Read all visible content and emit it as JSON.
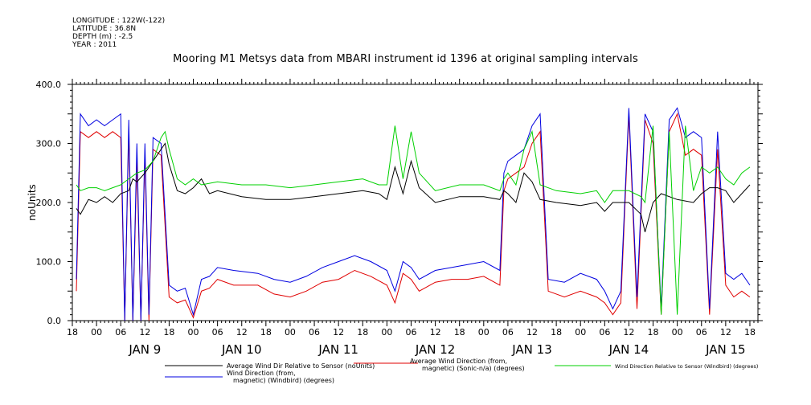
{
  "header": {
    "longitude": "LONGITUDE : 122W(-122)",
    "latitude": "LATITUDE : 36.8N",
    "depth": "DEPTH (m) : -2.5",
    "year": "YEAR : 2011"
  },
  "chart_data": {
    "type": "line",
    "title": "Mooring M1 Metsys data from MBARI instrument id 1396 at original sampling intervals",
    "ylabel": "noUnits",
    "xlabel": "",
    "ylim": [
      0,
      400
    ],
    "yticks": [
      0,
      100,
      200,
      300,
      400
    ],
    "xlim": [
      -6,
      164
    ],
    "x_unit": "hours since JAN 9 00:00",
    "hour_tick_labels": [
      "00",
      "06",
      "12",
      "18"
    ],
    "days": [
      "JAN 9",
      "JAN 10",
      "JAN 11",
      "JAN 12",
      "JAN 13",
      "JAN 14",
      "JAN 15"
    ],
    "grid": false,
    "series": [
      {
        "name": "Average Wind Dir Relative to Sensor (noUnits)",
        "color": "#000000",
        "points": [
          [
            -5,
            190
          ],
          [
            -4,
            180
          ],
          [
            -2,
            205
          ],
          [
            0,
            200
          ],
          [
            2,
            210
          ],
          [
            4,
            200
          ],
          [
            6,
            215
          ],
          [
            8,
            220
          ],
          [
            9,
            240
          ],
          [
            10,
            235
          ],
          [
            12,
            250
          ],
          [
            14,
            270
          ],
          [
            16,
            290
          ],
          [
            17,
            300
          ],
          [
            18,
            265
          ],
          [
            20,
            220
          ],
          [
            22,
            215
          ],
          [
            24,
            225
          ],
          [
            26,
            240
          ],
          [
            28,
            215
          ],
          [
            30,
            220
          ],
          [
            36,
            210
          ],
          [
            42,
            205
          ],
          [
            48,
            205
          ],
          [
            54,
            210
          ],
          [
            60,
            215
          ],
          [
            66,
            220
          ],
          [
            70,
            215
          ],
          [
            72,
            205
          ],
          [
            74,
            260
          ],
          [
            76,
            215
          ],
          [
            78,
            270
          ],
          [
            80,
            225
          ],
          [
            84,
            200
          ],
          [
            90,
            210
          ],
          [
            96,
            210
          ],
          [
            100,
            205
          ],
          [
            101,
            220
          ],
          [
            102,
            215
          ],
          [
            104,
            200
          ],
          [
            106,
            250
          ],
          [
            108,
            235
          ],
          [
            110,
            205
          ],
          [
            114,
            200
          ],
          [
            120,
            195
          ],
          [
            124,
            200
          ],
          [
            126,
            185
          ],
          [
            128,
            200
          ],
          [
            132,
            200
          ],
          [
            135,
            180
          ],
          [
            136,
            150
          ],
          [
            138,
            200
          ],
          [
            140,
            215
          ],
          [
            144,
            205
          ],
          [
            148,
            200
          ],
          [
            150,
            215
          ],
          [
            152,
            225
          ],
          [
            154,
            225
          ],
          [
            156,
            220
          ],
          [
            158,
            200
          ],
          [
            160,
            215
          ],
          [
            162,
            230
          ]
        ]
      },
      {
        "name": "Average Wind Direction (from, magnetic) (Sonic-n/a) (degrees)",
        "color": "#e00000",
        "points": [
          [
            -5,
            50
          ],
          [
            -4,
            320
          ],
          [
            -2,
            310
          ],
          [
            0,
            320
          ],
          [
            2,
            310
          ],
          [
            4,
            320
          ],
          [
            6,
            310
          ],
          [
            7,
            0
          ],
          [
            8,
            320
          ],
          [
            9,
            0
          ],
          [
            10,
            270
          ],
          [
            11,
            0
          ],
          [
            12,
            280
          ],
          [
            13,
            0
          ],
          [
            14,
            290
          ],
          [
            16,
            280
          ],
          [
            18,
            40
          ],
          [
            20,
            30
          ],
          [
            22,
            35
          ],
          [
            24,
            5
          ],
          [
            26,
            50
          ],
          [
            28,
            55
          ],
          [
            30,
            70
          ],
          [
            34,
            60
          ],
          [
            40,
            60
          ],
          [
            44,
            45
          ],
          [
            48,
            40
          ],
          [
            52,
            50
          ],
          [
            56,
            65
          ],
          [
            60,
            70
          ],
          [
            64,
            85
          ],
          [
            68,
            75
          ],
          [
            72,
            60
          ],
          [
            74,
            30
          ],
          [
            76,
            80
          ],
          [
            78,
            70
          ],
          [
            80,
            50
          ],
          [
            84,
            65
          ],
          [
            88,
            70
          ],
          [
            92,
            70
          ],
          [
            96,
            75
          ],
          [
            100,
            60
          ],
          [
            101,
            220
          ],
          [
            102,
            240
          ],
          [
            104,
            250
          ],
          [
            106,
            260
          ],
          [
            108,
            300
          ],
          [
            110,
            320
          ],
          [
            112,
            50
          ],
          [
            116,
            40
          ],
          [
            120,
            50
          ],
          [
            124,
            40
          ],
          [
            126,
            30
          ],
          [
            128,
            10
          ],
          [
            130,
            30
          ],
          [
            132,
            350
          ],
          [
            134,
            20
          ],
          [
            136,
            340
          ],
          [
            138,
            300
          ],
          [
            140,
            10
          ],
          [
            142,
            320
          ],
          [
            144,
            350
          ],
          [
            146,
            280
          ],
          [
            148,
            290
          ],
          [
            150,
            280
          ],
          [
            152,
            10
          ],
          [
            154,
            290
          ],
          [
            156,
            60
          ],
          [
            158,
            40
          ],
          [
            160,
            50
          ],
          [
            162,
            40
          ]
        ]
      },
      {
        "name": "Wind Direction Relative to Sensor (Windbird) (degrees)",
        "color": "#00d000",
        "points": [
          [
            -5,
            230
          ],
          [
            -4,
            220
          ],
          [
            -2,
            225
          ],
          [
            0,
            225
          ],
          [
            2,
            220
          ],
          [
            4,
            225
          ],
          [
            6,
            230
          ],
          [
            8,
            240
          ],
          [
            10,
            250
          ],
          [
            12,
            255
          ],
          [
            14,
            270
          ],
          [
            16,
            310
          ],
          [
            17,
            320
          ],
          [
            18,
            290
          ],
          [
            20,
            240
          ],
          [
            22,
            230
          ],
          [
            24,
            240
          ],
          [
            26,
            230
          ],
          [
            30,
            235
          ],
          [
            36,
            230
          ],
          [
            42,
            230
          ],
          [
            48,
            225
          ],
          [
            54,
            230
          ],
          [
            60,
            235
          ],
          [
            66,
            240
          ],
          [
            70,
            230
          ],
          [
            72,
            230
          ],
          [
            74,
            330
          ],
          [
            76,
            240
          ],
          [
            78,
            320
          ],
          [
            80,
            250
          ],
          [
            84,
            220
          ],
          [
            90,
            230
          ],
          [
            96,
            230
          ],
          [
            100,
            220
          ],
          [
            101,
            240
          ],
          [
            102,
            250
          ],
          [
            104,
            230
          ],
          [
            106,
            290
          ],
          [
            108,
            320
          ],
          [
            110,
            230
          ],
          [
            114,
            220
          ],
          [
            120,
            215
          ],
          [
            124,
            220
          ],
          [
            126,
            200
          ],
          [
            128,
            220
          ],
          [
            132,
            220
          ],
          [
            135,
            210
          ],
          [
            136,
            200
          ],
          [
            138,
            330
          ],
          [
            140,
            10
          ],
          [
            142,
            320
          ],
          [
            144,
            10
          ],
          [
            146,
            330
          ],
          [
            148,
            220
          ],
          [
            150,
            260
          ],
          [
            152,
            250
          ],
          [
            154,
            260
          ],
          [
            156,
            240
          ],
          [
            158,
            230
          ],
          [
            160,
            250
          ],
          [
            162,
            260
          ]
        ]
      },
      {
        "name": "Wind Direction (from, magnetic) (Windbird) (degrees)",
        "color": "#0000e0",
        "points": [
          [
            -5,
            70
          ],
          [
            -4,
            350
          ],
          [
            -2,
            330
          ],
          [
            0,
            340
          ],
          [
            2,
            330
          ],
          [
            4,
            340
          ],
          [
            6,
            350
          ],
          [
            7,
            0
          ],
          [
            8,
            340
          ],
          [
            9,
            0
          ],
          [
            10,
            300
          ],
          [
            11,
            0
          ],
          [
            12,
            300
          ],
          [
            13,
            10
          ],
          [
            14,
            310
          ],
          [
            16,
            300
          ],
          [
            18,
            60
          ],
          [
            20,
            50
          ],
          [
            22,
            55
          ],
          [
            24,
            10
          ],
          [
            26,
            70
          ],
          [
            28,
            75
          ],
          [
            30,
            90
          ],
          [
            34,
            85
          ],
          [
            40,
            80
          ],
          [
            44,
            70
          ],
          [
            48,
            65
          ],
          [
            52,
            75
          ],
          [
            56,
            90
          ],
          [
            60,
            100
          ],
          [
            64,
            110
          ],
          [
            68,
            100
          ],
          [
            72,
            85
          ],
          [
            74,
            50
          ],
          [
            76,
            100
          ],
          [
            78,
            90
          ],
          [
            80,
            70
          ],
          [
            84,
            85
          ],
          [
            88,
            90
          ],
          [
            92,
            95
          ],
          [
            96,
            100
          ],
          [
            100,
            85
          ],
          [
            101,
            250
          ],
          [
            102,
            270
          ],
          [
            104,
            280
          ],
          [
            106,
            290
          ],
          [
            108,
            330
          ],
          [
            110,
            350
          ],
          [
            112,
            70
          ],
          [
            116,
            65
          ],
          [
            120,
            80
          ],
          [
            124,
            70
          ],
          [
            126,
            50
          ],
          [
            128,
            20
          ],
          [
            130,
            50
          ],
          [
            132,
            360
          ],
          [
            134,
            40
          ],
          [
            136,
            350
          ],
          [
            138,
            320
          ],
          [
            140,
            20
          ],
          [
            142,
            340
          ],
          [
            144,
            360
          ],
          [
            146,
            310
          ],
          [
            148,
            320
          ],
          [
            150,
            310
          ],
          [
            152,
            20
          ],
          [
            154,
            320
          ],
          [
            156,
            80
          ],
          [
            158,
            70
          ],
          [
            160,
            80
          ],
          [
            162,
            60
          ]
        ]
      }
    ]
  }
}
